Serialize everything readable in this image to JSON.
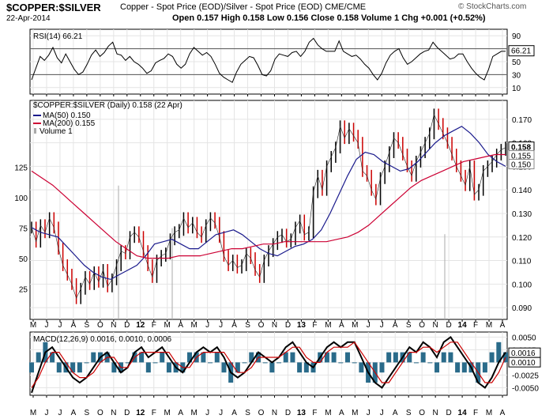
{
  "header": {
    "symbol": "$COPPER:$SILVER",
    "description": "Copper - Spot Price (EOD)/Silver - Spot Price (EOD)",
    "exchange": "CME/CME",
    "source": "© StockCharts.com",
    "date": "22-Apr-2014",
    "ohlc": "Open 0.157  High 0.158  Low 0.156  Close 0.158  Volume 1  Chg +0.001 (+0.52%)"
  },
  "chart_data": [
    {
      "type": "line",
      "panel": "rsi",
      "legend": [
        "RSI(14) 66.21"
      ],
      "ylim": [
        0,
        100
      ],
      "y_ticks": [
        10,
        30,
        50,
        70,
        90
      ],
      "reference_lines": [
        30,
        70
      ],
      "last_value_label": "66.21",
      "x_ticks": [
        "M",
        "J",
        "J",
        "A",
        "S",
        "O",
        "N",
        "D",
        "12",
        "F",
        "M",
        "A",
        "M",
        "J",
        "J",
        "A",
        "S",
        "O",
        "N",
        "D",
        "13",
        "F",
        "M",
        "A",
        "M",
        "J",
        "J",
        "A",
        "S",
        "O",
        "N",
        "D",
        "14",
        "F",
        "M",
        "A"
      ],
      "series": [
        {
          "values": [
            22,
            40,
            58,
            52,
            60,
            72,
            56,
            48,
            62,
            50,
            38,
            30,
            34,
            46,
            60,
            68,
            58,
            64,
            74,
            80,
            62,
            60,
            52,
            58,
            50,
            46,
            40,
            32,
            36,
            48,
            52,
            55,
            62,
            58,
            46,
            40,
            46,
            62,
            72,
            66,
            60,
            64,
            58,
            46,
            32,
            26,
            22,
            18,
            34,
            46,
            52,
            58,
            56,
            44,
            30,
            28,
            36,
            54,
            62,
            60,
            58,
            64,
            66,
            58,
            66,
            80,
            86,
            76,
            70,
            66,
            66,
            66,
            82,
            66,
            62,
            58,
            60,
            54,
            46,
            40,
            30,
            22,
            32,
            48,
            60,
            66,
            70,
            56,
            46,
            50,
            56,
            62,
            66,
            68,
            80,
            72,
            66,
            60,
            54,
            56,
            62,
            62,
            50,
            40,
            32,
            26,
            22,
            38,
            58,
            62,
            66,
            66
          ]
        }
      ]
    },
    {
      "type": "line",
      "panel": "price",
      "legend": [
        "$COPPER:$SILVER (Daily) 0.158 (22 Apr)",
        "MA(50) 0.150",
        "MA(200) 0.155",
        "Volume 1"
      ],
      "ylim": [
        0.085,
        0.178
      ],
      "y_ticks": [
        0.09,
        0.1,
        0.11,
        0.12,
        0.13,
        0.14,
        0.15,
        0.16,
        0.17
      ],
      "last_value_labels": [
        "0.158",
        "0.155",
        "0.150"
      ],
      "volume_axis_ticks": [
        25,
        50,
        75,
        100,
        125
      ],
      "x_ticks": [
        "M",
        "J",
        "J",
        "A",
        "S",
        "O",
        "N",
        "D",
        "12",
        "F",
        "M",
        "A",
        "M",
        "J",
        "J",
        "A",
        "S",
        "O",
        "N",
        "D",
        "13",
        "F",
        "M",
        "A",
        "M",
        "J",
        "J",
        "A",
        "S",
        "O",
        "N",
        "D",
        "14",
        "F",
        "M",
        "A"
      ],
      "series": [
        {
          "name": "$COPPER:$SILVER",
          "values": [
            0.124,
            0.118,
            0.125,
            0.122,
            0.128,
            0.124,
            0.115,
            0.108,
            0.104,
            0.1,
            0.094,
            0.098,
            0.103,
            0.1,
            0.105,
            0.101,
            0.106,
            0.099,
            0.102,
            0.108,
            0.114,
            0.113,
            0.12,
            0.122,
            0.12,
            0.114,
            0.108,
            0.103,
            0.11,
            0.112,
            0.113,
            0.119,
            0.122,
            0.123,
            0.128,
            0.124,
            0.126,
            0.122,
            0.12,
            0.125,
            0.128,
            0.126,
            0.12,
            0.112,
            0.108,
            0.11,
            0.107,
            0.108,
            0.113,
            0.111,
            0.106,
            0.103,
            0.11,
            0.114,
            0.117,
            0.12,
            0.121,
            0.118,
            0.119,
            0.124,
            0.127,
            0.121,
            0.122,
            0.139,
            0.146,
            0.14,
            0.15,
            0.154,
            0.158,
            0.167,
            0.162,
            0.166,
            0.163,
            0.16,
            0.148,
            0.146,
            0.14,
            0.136,
            0.145,
            0.15,
            0.156,
            0.162,
            0.16,
            0.155,
            0.15,
            0.146,
            0.152,
            0.156,
            0.16,
            0.164,
            0.172,
            0.168,
            0.164,
            0.16,
            0.155,
            0.15,
            0.146,
            0.142,
            0.15,
            0.138,
            0.14,
            0.148,
            0.15,
            0.152,
            0.155,
            0.157,
            0.158
          ]
        },
        {
          "name": "MA(50)",
          "values": [
            0.124,
            0.122,
            0.121,
            0.12,
            0.116,
            0.112,
            0.108,
            0.105,
            0.103,
            0.102,
            0.104,
            0.106,
            0.108,
            0.112,
            0.117,
            0.118,
            0.119,
            0.117,
            0.115,
            0.115,
            0.118,
            0.121,
            0.122,
            0.123,
            0.121,
            0.118,
            0.115,
            0.113,
            0.112,
            0.114,
            0.116,
            0.117,
            0.119,
            0.123,
            0.13,
            0.138,
            0.146,
            0.153,
            0.156,
            0.155,
            0.152,
            0.15,
            0.148,
            0.149,
            0.152,
            0.156,
            0.16,
            0.163,
            0.165,
            0.167,
            0.164,
            0.16,
            0.155,
            0.152,
            0.15
          ]
        },
        {
          "name": "MA(200)",
          "values": [
            0.148,
            0.145,
            0.142,
            0.138,
            0.134,
            0.13,
            0.126,
            0.122,
            0.118,
            0.115,
            0.112,
            0.111,
            0.111,
            0.111,
            0.112,
            0.112,
            0.112,
            0.113,
            0.114,
            0.115,
            0.115,
            0.116,
            0.117,
            0.117,
            0.118,
            0.118,
            0.118,
            0.118,
            0.118,
            0.119,
            0.12,
            0.122,
            0.125,
            0.129,
            0.133,
            0.137,
            0.141,
            0.144,
            0.146,
            0.148,
            0.15,
            0.152,
            0.153,
            0.154,
            0.155,
            0.155
          ]
        }
      ]
    },
    {
      "type": "line",
      "panel": "macd",
      "legend": [
        "MACD(12,26,9) 0.0016, 0.0010, 0.0006"
      ],
      "ylim": [
        -0.0065,
        0.006
      ],
      "y_ticks": [
        -0.005,
        -0.0025,
        0.0,
        0.0025,
        0.005
      ],
      "last_value_labels": [
        "0.0016",
        "0.0010"
      ],
      "x_ticks": [
        "M",
        "J",
        "J",
        "A",
        "S",
        "O",
        "N",
        "D",
        "12",
        "F",
        "M",
        "A",
        "M",
        "J",
        "J",
        "A",
        "S",
        "O",
        "N",
        "D",
        "13",
        "F",
        "M",
        "A",
        "M",
        "J",
        "J",
        "A",
        "S",
        "O",
        "N",
        "D",
        "14",
        "F",
        "M",
        "A"
      ],
      "series": [
        {
          "name": "MACD",
          "values": [
            -0.006,
            -0.002,
            0.002,
            0.003,
            0.001,
            -0.001,
            -0.003,
            -0.004,
            -0.003,
            -0.001,
            0.001,
            0.002,
            0.0,
            -0.002,
            -0.001,
            0.002,
            0.003,
            0.001,
            0.002,
            0.003,
            0.001,
            -0.001,
            -0.002,
            0.0,
            0.002,
            0.003,
            0.002,
            0.003,
            0.001,
            -0.002,
            -0.003,
            -0.002,
            0.0,
            0.002,
            0.001,
            0.0,
            0.001,
            0.003,
            0.004,
            0.002,
            0.0,
            -0.001,
            0.001,
            0.003,
            0.004,
            0.003,
            0.004,
            0.004,
            0.001,
            -0.002,
            -0.004,
            -0.005,
            -0.003,
            -0.001,
            0.001,
            0.003,
            0.002,
            0.004,
            0.003,
            0.001,
            0.004,
            0.005,
            0.003,
            0.001,
            -0.001,
            -0.004,
            -0.005,
            -0.003,
            0.0,
            0.002
          ]
        },
        {
          "name": "Signal",
          "values": [
            -0.005,
            -0.003,
            0.0,
            0.002,
            0.002,
            0.0,
            -0.002,
            -0.003,
            -0.003,
            -0.002,
            0.0,
            0.001,
            0.001,
            -0.001,
            -0.001,
            0.001,
            0.002,
            0.002,
            0.002,
            0.002,
            0.002,
            0.0,
            -0.001,
            -0.001,
            0.001,
            0.002,
            0.002,
            0.002,
            0.002,
            0.0,
            -0.002,
            -0.002,
            -0.001,
            0.001,
            0.001,
            0.001,
            0.001,
            0.002,
            0.003,
            0.003,
            0.001,
            0.0,
            0.0,
            0.002,
            0.003,
            0.003,
            0.003,
            0.004,
            0.002,
            0.0,
            -0.002,
            -0.004,
            -0.004,
            -0.002,
            0.0,
            0.002,
            0.002,
            0.003,
            0.003,
            0.002,
            0.003,
            0.004,
            0.004,
            0.002,
            0.0,
            -0.002,
            -0.004,
            -0.004,
            -0.002,
            0.001
          ]
        },
        {
          "name": "Histogram",
          "values": [
            -0.001,
            0.001,
            0.002,
            0.001,
            -0.001,
            -0.001,
            -0.001,
            -0.001,
            0.0,
            0.001,
            0.001,
            0.001,
            -0.001,
            -0.001,
            0.0,
            0.001,
            0.001,
            -0.001,
            0.0,
            0.001,
            -0.001,
            -0.001,
            -0.001,
            0.001,
            0.001,
            0.001,
            0.0,
            0.001,
            -0.001,
            -0.002,
            -0.001,
            0.0,
            0.001,
            0.001,
            0.0,
            -0.001,
            0.0,
            0.001,
            0.001,
            -0.001,
            -0.001,
            -0.001,
            0.001,
            0.001,
            0.001,
            0.0,
            0.001,
            0.0,
            -0.001,
            -0.002,
            -0.002,
            -0.001,
            0.001,
            0.001,
            0.001,
            0.001,
            0.0,
            0.001,
            0.0,
            -0.001,
            0.001,
            0.001,
            -0.001,
            -0.001,
            -0.001,
            -0.002,
            -0.001,
            0.001,
            0.002,
            0.001
          ]
        }
      ]
    }
  ],
  "colors": {
    "price": "#cc0000",
    "ma50": "#1a1a8c",
    "ma200": "#cc0033",
    "volume": "#aaaaaa",
    "histogram": "#2a6b8a",
    "rsi": "#000000"
  }
}
